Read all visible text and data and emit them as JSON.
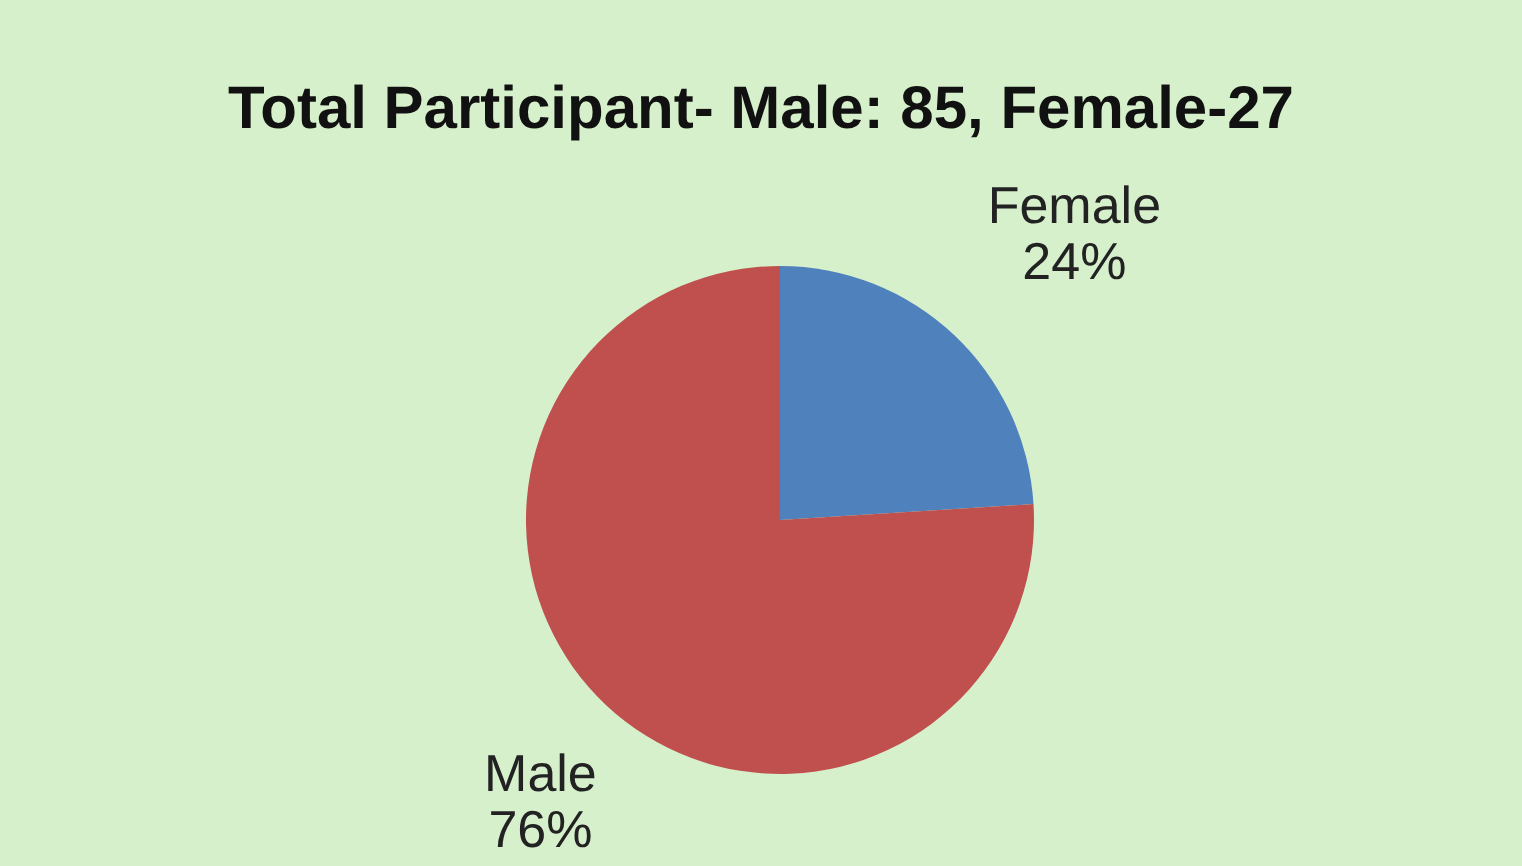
{
  "chart_data": {
    "type": "pie",
    "title": "Total Participant- Male: 85, Female-27",
    "categories": [
      "Female",
      "Male"
    ],
    "values": [
      24,
      76
    ],
    "colors": [
      "#4f81bd",
      "#c0504d"
    ],
    "value_labels": [
      "24%",
      "76%"
    ]
  }
}
